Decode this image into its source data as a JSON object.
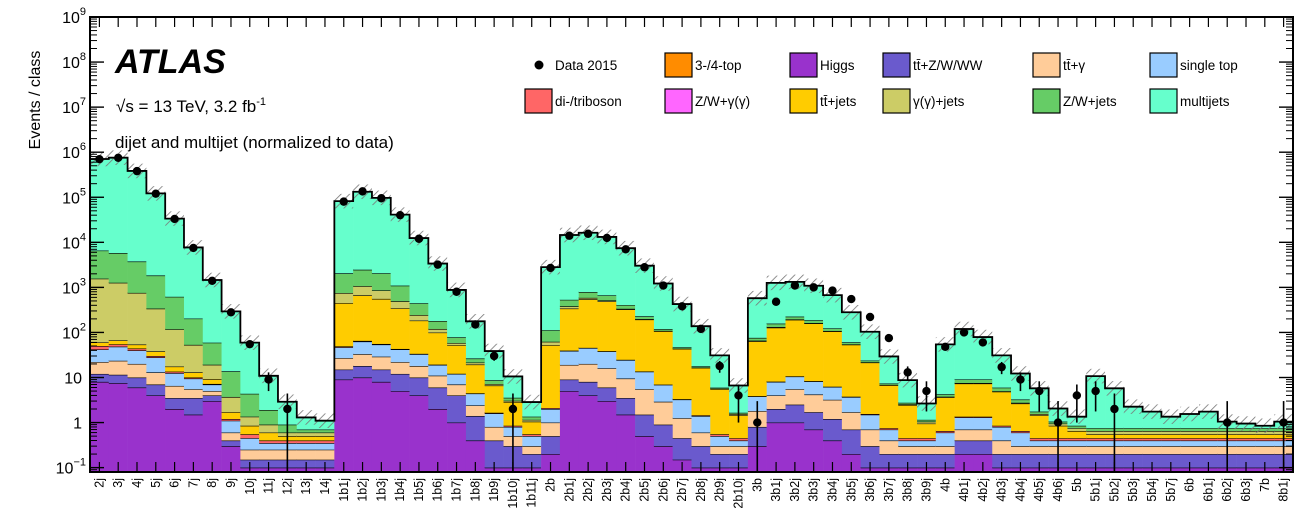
{
  "chart_data": {
    "type": "bar",
    "title": "ATLAS",
    "energy_label": "√s = 13 TeV, 3.2 fb",
    "energy_sup": "-1",
    "subtitle": "dijet and multijet (normalized to data)",
    "ylabel": "Events / class",
    "yscale": "log",
    "ylim": [
      0.08,
      1000000000
    ],
    "y_ticks": [
      {
        "v": 0.1,
        "base": "10",
        "exp": "−1"
      },
      {
        "v": 1,
        "base": "1",
        "exp": ""
      },
      {
        "v": 10,
        "base": "10",
        "exp": ""
      },
      {
        "v": 100,
        "base": "10",
        "exp": "2"
      },
      {
        "v": 1000,
        "base": "10",
        "exp": "3"
      },
      {
        "v": 10000,
        "base": "10",
        "exp": "4"
      },
      {
        "v": 100000,
        "base": "10",
        "exp": "5"
      },
      {
        "v": 1000000,
        "base": "10",
        "exp": "6"
      },
      {
        "v": 10000000,
        "base": "10",
        "exp": "7"
      },
      {
        "v": 100000000,
        "base": "10",
        "exp": "8"
      },
      {
        "v": 1000000000,
        "base": "10",
        "exp": "9"
      }
    ],
    "categories": [
      "2j",
      "3j",
      "4j",
      "5j",
      "6j",
      "7j",
      "8j",
      "9j",
      "10j",
      "11j",
      "12j",
      "13j",
      "14j",
      "1b1j",
      "1b2j",
      "1b3j",
      "1b4j",
      "1b5j",
      "1b6j",
      "1b7j",
      "1b8j",
      "1b9j",
      "1b10j",
      "1b11j",
      "2b",
      "2b1j",
      "2b2j",
      "2b3j",
      "2b4j",
      "2b5j",
      "2b6j",
      "2b7j",
      "2b8j",
      "2b9j",
      "2b10j",
      "3b",
      "3b1j",
      "3b2j",
      "3b3j",
      "3b4j",
      "3b5j",
      "3b6j",
      "3b7j",
      "3b8j",
      "3b9j",
      "4b",
      "4b1j",
      "4b2j",
      "4b3j",
      "4b4j",
      "4b5j",
      "4b6j",
      "5b",
      "5b1j",
      "5b2j",
      "5b3j",
      "5b4j",
      "5b7j",
      "6b",
      "6b1j",
      "6b2j",
      "6b3j",
      "7b",
      "8b1j"
    ],
    "legend": [
      {
        "name": "Data 2015",
        "color": "#000000",
        "kind": "data"
      },
      {
        "name": "3-/4-top",
        "color": "#ff8c00",
        "kind": "box"
      },
      {
        "name": "Higgs",
        "color": "#9932cc",
        "kind": "box"
      },
      {
        "name": "tt̄+Z/W/WW",
        "color": "#6a5acd",
        "kind": "box"
      },
      {
        "name": "tt̄+γ",
        "color": "#ffcc99",
        "kind": "box"
      },
      {
        "name": "single top",
        "color": "#99ccff",
        "kind": "box"
      },
      {
        "name": "di-/triboson",
        "color": "#ff6666",
        "kind": "box"
      },
      {
        "name": "Z/W+γ(γ)",
        "color": "#ff66ff",
        "kind": "box"
      },
      {
        "name": "tt̄+jets",
        "color": "#ffcc00",
        "kind": "box"
      },
      {
        "name": "γ(γ)+jets",
        "color": "#cccc66",
        "kind": "box"
      },
      {
        "name": "Z/W+jets",
        "color": "#66cc66",
        "kind": "box"
      },
      {
        "name": "multijets",
        "color": "#66ffcc",
        "kind": "box"
      }
    ],
    "series": [
      {
        "name": "Higgs",
        "color": "#9932cc",
        "values": [
          8,
          7.5,
          6,
          4,
          2,
          1.5,
          3,
          0.3,
          0.1,
          0.1,
          0.1,
          0.1,
          0.1,
          9,
          10,
          8,
          5,
          4,
          2,
          1,
          0.4,
          0.1,
          0.1,
          0.1,
          0.2,
          5,
          4,
          3,
          1.5,
          0.5,
          0.3,
          0.15,
          0.1,
          0.1,
          0.1,
          0.3,
          1,
          1,
          0.7,
          0.4,
          0.2,
          0.1,
          0.1,
          0.1,
          0.1,
          0.1,
          0.2,
          0.2,
          0.1,
          0.1,
          0.1,
          0.1,
          0.1,
          0.1,
          0.1,
          0.1,
          0.1,
          0.1,
          0.1,
          0.1,
          0.1,
          0.1,
          0.1,
          0.1
        ]
      },
      {
        "name": "tt̄+Z/W/WW",
        "color": "#6a5acd",
        "values": [
          4,
          4,
          4,
          3,
          1.5,
          2,
          1,
          0.1,
          0.05,
          0.05,
          0.05,
          0.05,
          0.05,
          6,
          8,
          7,
          7,
          6,
          4,
          3,
          1,
          0.3,
          0.2,
          0.1,
          0.3,
          4,
          4,
          3,
          2,
          1,
          0.6,
          0.3,
          0.2,
          0.1,
          0.1,
          0.5,
          1,
          1.5,
          1,
          0.8,
          0.5,
          0.2,
          0.1,
          0.1,
          0.1,
          0.1,
          0.2,
          0.2,
          0.1,
          0.1,
          0.1,
          0.1,
          0.1,
          0.1,
          0.1,
          0.1,
          0.1,
          0.1,
          0.1,
          0.1,
          0.1,
          0.1,
          0.1,
          0.1
        ]
      },
      {
        "name": "tt̄+γ",
        "color": "#ffcc99",
        "values": [
          10,
          12,
          10,
          6,
          3,
          2,
          1,
          0.2,
          0.1,
          0.1,
          0.1,
          0.1,
          0.1,
          12,
          15,
          14,
          10,
          8,
          5,
          3,
          1,
          0.4,
          0.2,
          0.1,
          0.5,
          10,
          12,
          10,
          6,
          4,
          2,
          0.8,
          0.3,
          0.1,
          0.1,
          1,
          2,
          3,
          2.5,
          2,
          1,
          0.4,
          0.2,
          0.1,
          0.1,
          0.1,
          0.3,
          0.3,
          0.2,
          0.1,
          0.1,
          0.1,
          0.1,
          0.1,
          0.1,
          0.1,
          0.1,
          0.1,
          0.1,
          0.1,
          0.1,
          0.1,
          0.1,
          0.1
        ]
      },
      {
        "name": "single top",
        "color": "#99ccff",
        "values": [
          20,
          25,
          20,
          15,
          6,
          4,
          2,
          0.5,
          0.2,
          0.1,
          0.1,
          0.1,
          0.1,
          20,
          30,
          25,
          20,
          15,
          8,
          5,
          2,
          0.8,
          0.3,
          0.2,
          1,
          20,
          25,
          22,
          15,
          8,
          4,
          2,
          0.8,
          0.2,
          0.1,
          2,
          4,
          5,
          4,
          3,
          2,
          0.8,
          0.3,
          0.1,
          0.1,
          0.3,
          0.6,
          0.6,
          0.4,
          0.3,
          0.1,
          0.1,
          0.1,
          0.1,
          0.1,
          0.1,
          0.1,
          0.1,
          0.1,
          0.1,
          0.1,
          0.1,
          0.1,
          0.1
        ]
      },
      {
        "name": "di-/triboson",
        "color": "#ff6666",
        "values": [
          8,
          6,
          4,
          2,
          1,
          0.5,
          0.2,
          0.1,
          0.1,
          0.05,
          0.05,
          0.05,
          0.05,
          2,
          2,
          1.5,
          1,
          0.5,
          0.3,
          0.1,
          0.05,
          0.05,
          0.05,
          0.05,
          0.1,
          0.5,
          0.5,
          0.3,
          0.2,
          0.1,
          0.05,
          0.05,
          0.05,
          0.05,
          0.05,
          0.05,
          0.1,
          0.1,
          0.1,
          0.05,
          0.05,
          0.05,
          0.05,
          0.05,
          0.05,
          0.05,
          0.05,
          0.05,
          0.05,
          0.05,
          0.05,
          0.05,
          0.05,
          0.05,
          0.05,
          0.05,
          0.05,
          0.05,
          0.05,
          0.05,
          0.05,
          0.05,
          0.05,
          0.05
        ]
      },
      {
        "name": "tt̄+jets",
        "color": "#ffcc00",
        "values": [
          10,
          12,
          10,
          8,
          4,
          3,
          2,
          0.5,
          0.3,
          0.2,
          0.1,
          0.1,
          0.1,
          400,
          600,
          500,
          300,
          150,
          80,
          40,
          15,
          5,
          2,
          0.5,
          50,
          300,
          500,
          450,
          300,
          180,
          100,
          40,
          15,
          5,
          1,
          60,
          120,
          180,
          150,
          100,
          50,
          20,
          6,
          2,
          0.5,
          3,
          6,
          6,
          4,
          2,
          1,
          0.4,
          0.2,
          0.1,
          0.1,
          0.1,
          0.1,
          0.1,
          0.1,
          0.1,
          0.1,
          0.1,
          0.1,
          0.1
        ]
      },
      {
        "name": "γ(γ)+jets",
        "color": "#cccc66",
        "values": [
          1500,
          1200,
          700,
          300,
          100,
          40,
          10,
          2,
          0.5,
          0.3,
          0.1,
          0.1,
          0.1,
          300,
          400,
          300,
          150,
          60,
          20,
          6,
          2,
          0.5,
          0.2,
          0.1,
          10,
          40,
          40,
          25,
          10,
          4,
          1.5,
          0.5,
          0.2,
          0.1,
          0.1,
          2,
          4,
          4,
          3,
          1.5,
          0.5,
          0.2,
          0.1,
          0.1,
          0.1,
          0.1,
          0.2,
          0.2,
          0.1,
          0.1,
          0.1,
          0.1,
          0.1,
          0.1,
          0.1,
          0.1,
          0.1,
          0.1,
          0.1,
          0.1,
          0.1,
          0.1,
          0.1,
          0.1
        ]
      },
      {
        "name": "Z/W+jets",
        "color": "#66cc66",
        "values": [
          5000,
          4500,
          3000,
          1500,
          500,
          150,
          40,
          10,
          3,
          1,
          0.3,
          0.1,
          0.1,
          1300,
          1400,
          1200,
          600,
          200,
          60,
          20,
          5,
          1.5,
          0.5,
          0.2,
          50,
          150,
          200,
          150,
          70,
          30,
          10,
          3,
          1,
          0.3,
          0.1,
          10,
          25,
          30,
          25,
          15,
          6,
          2,
          0.5,
          0.2,
          0.1,
          0.5,
          1.5,
          1.5,
          1,
          0.5,
          0.2,
          0.1,
          0.1,
          0.1,
          0.1,
          0.1,
          0.1,
          0.1,
          0.1,
          0.1,
          0.1,
          0.1,
          0.1,
          0.1
        ]
      },
      {
        "name": "multijets",
        "color": "#66ffcc",
        "values": [
          700000,
          750000,
          380000,
          120000,
          33000,
          7500,
          1400,
          280,
          55,
          9,
          2,
          0.6,
          0.4,
          80000,
          130000,
          95000,
          40000,
          12000,
          3200,
          800,
          150,
          30,
          7,
          1.5,
          2700,
          14000,
          15500,
          12500,
          7000,
          2800,
          1100,
          380,
          120,
          25,
          5,
          500,
          1100,
          1100,
          900,
          550,
          220,
          80,
          22,
          6,
          1.5,
          50,
          110,
          70,
          25,
          9,
          4,
          1,
          0.5,
          10,
          5,
          1.5,
          1,
          0.6,
          0.8,
          1,
          0.3,
          0.2,
          0.1,
          0.3
        ]
      }
    ],
    "data": [
      {
        "bin": "2j",
        "y": 700000
      },
      {
        "bin": "3j",
        "y": 750000
      },
      {
        "bin": "4j",
        "y": 380000
      },
      {
        "bin": "5j",
        "y": 120000
      },
      {
        "bin": "6j",
        "y": 33000
      },
      {
        "bin": "7j",
        "y": 7500
      },
      {
        "bin": "8j",
        "y": 1400
      },
      {
        "bin": "9j",
        "y": 280
      },
      {
        "bin": "10j",
        "y": 55
      },
      {
        "bin": "11j",
        "y": 9
      },
      {
        "bin": "12j",
        "y": 2
      },
      {
        "bin": "1b1j",
        "y": 80000
      },
      {
        "bin": "1b2j",
        "y": 135000
      },
      {
        "bin": "1b3j",
        "y": 95000
      },
      {
        "bin": "1b4j",
        "y": 40000
      },
      {
        "bin": "1b5j",
        "y": 12000
      },
      {
        "bin": "1b6j",
        "y": 3200
      },
      {
        "bin": "1b7j",
        "y": 800
      },
      {
        "bin": "1b8j",
        "y": 150
      },
      {
        "bin": "1b9j",
        "y": 30
      },
      {
        "bin": "1b10j",
        "y": 2
      },
      {
        "bin": "2b",
        "y": 2700
      },
      {
        "bin": "2b1j",
        "y": 14000
      },
      {
        "bin": "2b2j",
        "y": 15500
      },
      {
        "bin": "2b3j",
        "y": 12500
      },
      {
        "bin": "2b4j",
        "y": 7000
      },
      {
        "bin": "2b5j",
        "y": 2800
      },
      {
        "bin": "2b6j",
        "y": 1100
      },
      {
        "bin": "2b7j",
        "y": 380
      },
      {
        "bin": "2b8j",
        "y": 120
      },
      {
        "bin": "2b9j",
        "y": 18
      },
      {
        "bin": "2b10j",
        "y": 4
      },
      {
        "bin": "3b",
        "y": 1
      },
      {
        "bin": "3b1j",
        "y": 480
      },
      {
        "bin": "3b2j",
        "y": 1100
      },
      {
        "bin": "3b3j",
        "y": 1000
      },
      {
        "bin": "3b4j",
        "y": 850
      },
      {
        "bin": "3b5j",
        "y": 550
      },
      {
        "bin": "3b6j",
        "y": 220
      },
      {
        "bin": "3b7j",
        "y": 75
      },
      {
        "bin": "3b8j",
        "y": 13
      },
      {
        "bin": "3b9j",
        "y": 5
      },
      {
        "bin": "4b",
        "y": 48
      },
      {
        "bin": "4b1j",
        "y": 100
      },
      {
        "bin": "4b2j",
        "y": 60
      },
      {
        "bin": "4b3j",
        "y": 17
      },
      {
        "bin": "4b4j",
        "y": 9
      },
      {
        "bin": "4b5j",
        "y": 5
      },
      {
        "bin": "4b6j",
        "y": 1
      },
      {
        "bin": "5b",
        "y": 4
      },
      {
        "bin": "5b1j",
        "y": 5
      },
      {
        "bin": "5b2j",
        "y": 2
      },
      {
        "bin": "6b2j",
        "y": 1
      },
      {
        "bin": "8b1j",
        "y": 1
      }
    ]
  }
}
